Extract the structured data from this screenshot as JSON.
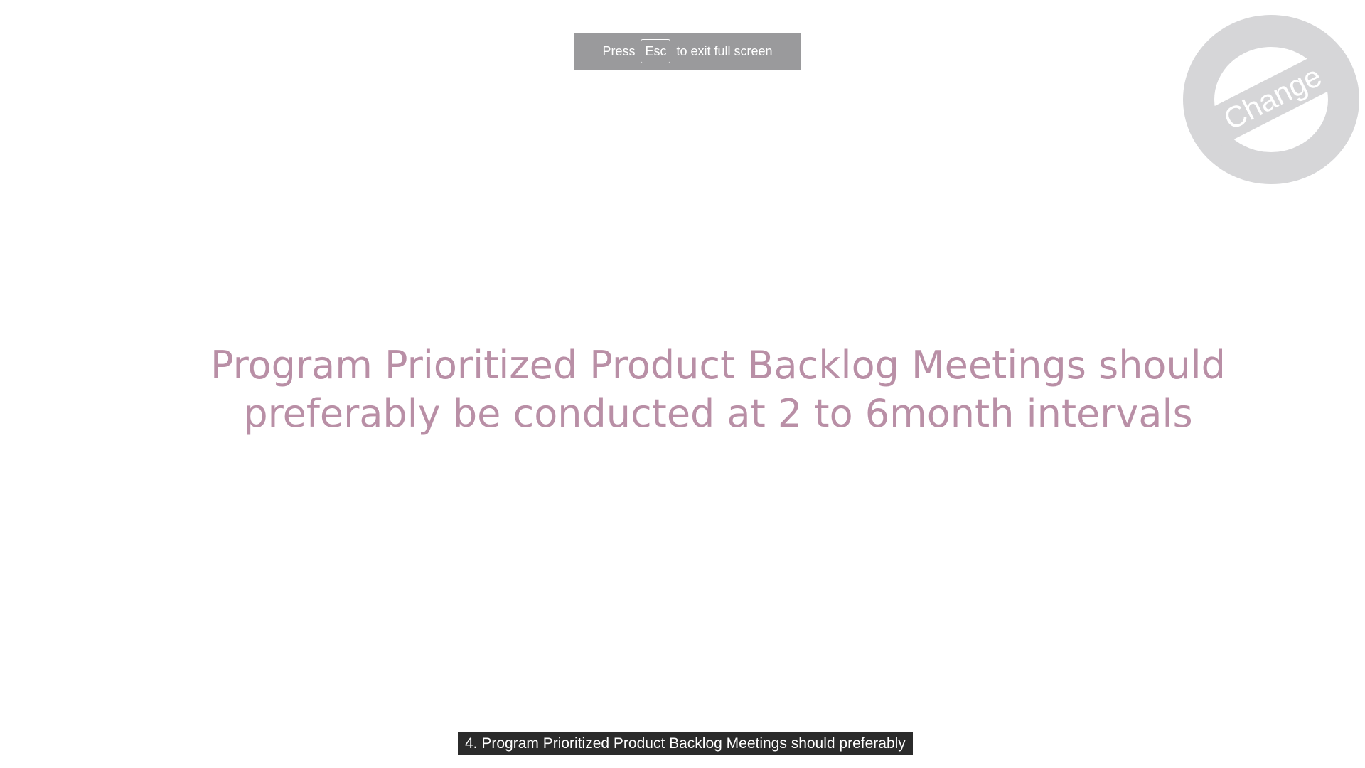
{
  "fullscreen_notice": {
    "prefix": "Press",
    "key": "Esc",
    "suffix": "to exit full screen"
  },
  "watermark": {
    "text": "Change",
    "icon": "change-logo-icon",
    "color": "#d6d6d8"
  },
  "slide": {
    "lines": [
      "Program Prioritized Product Backlog Meetings should",
      "preferably be conducted at 2 to 6month intervals"
    ],
    "text_color": "#b98fa6"
  },
  "caption": {
    "text": "4. Program Prioritized Product Backlog Meetings should preferably"
  }
}
